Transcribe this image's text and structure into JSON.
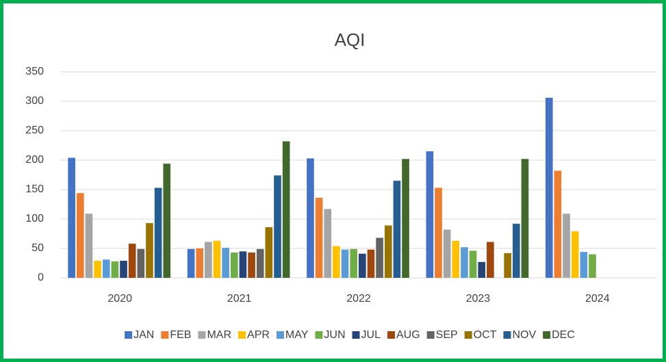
{
  "chart_data": {
    "type": "bar",
    "title": "AQI",
    "categories": [
      "2020",
      "2021",
      "2022",
      "2023",
      "2024"
    ],
    "series": [
      {
        "name": "JAN",
        "color": "#4472c4",
        "values": [
          204,
          49,
          203,
          215,
          306
        ]
      },
      {
        "name": "FEB",
        "color": "#ed7d31",
        "values": [
          144,
          50,
          136,
          153,
          182
        ]
      },
      {
        "name": "MAR",
        "color": "#a5a5a5",
        "values": [
          109,
          61,
          117,
          82,
          109
        ]
      },
      {
        "name": "APR",
        "color": "#ffc000",
        "values": [
          29,
          63,
          54,
          63,
          79
        ]
      },
      {
        "name": "MAY",
        "color": "#5b9bd5",
        "values": [
          31,
          51,
          48,
          52,
          44
        ]
      },
      {
        "name": "JUN",
        "color": "#70ad47",
        "values": [
          28,
          43,
          49,
          46,
          40
        ]
      },
      {
        "name": "JUL",
        "color": "#264478",
        "values": [
          29,
          45,
          41,
          27,
          null
        ]
      },
      {
        "name": "AUG",
        "color": "#9e480e",
        "values": [
          58,
          43,
          48,
          61,
          null
        ]
      },
      {
        "name": "SEP",
        "color": "#636363",
        "values": [
          49,
          49,
          68,
          null,
          null
        ]
      },
      {
        "name": "OCT",
        "color": "#997300",
        "values": [
          93,
          86,
          89,
          42,
          null
        ]
      },
      {
        "name": "NOV",
        "color": "#255e91",
        "values": [
          153,
          174,
          165,
          92,
          null
        ]
      },
      {
        "name": "DEC",
        "color": "#43682b",
        "values": [
          194,
          232,
          202,
          202,
          null
        ]
      }
    ],
    "ylim": [
      0,
      350
    ],
    "yticks": [
      0,
      50,
      100,
      150,
      200,
      250,
      300,
      350
    ],
    "grid": true,
    "legend": "bottom"
  }
}
